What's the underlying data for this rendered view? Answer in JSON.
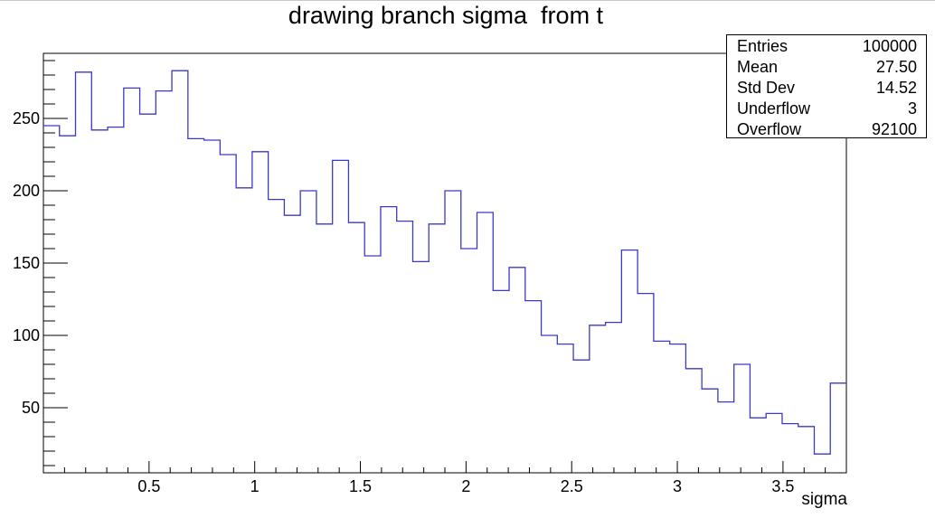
{
  "chart_data": {
    "type": "histogram",
    "title": "drawing branch sigma  from t",
    "xlabel": "sigma",
    "ylabel": "",
    "xlim": [
      0.0,
      3.8
    ],
    "ylim": [
      5,
      295
    ],
    "bin_edges_start": 0.0,
    "bin_width": 0.076,
    "values": [
      245,
      238,
      282,
      242,
      244,
      271,
      253,
      269,
      283,
      236,
      235,
      225,
      202,
      227,
      194,
      183,
      200,
      177,
      221,
      178,
      155,
      189,
      179,
      151,
      177,
      200,
      160,
      185,
      131,
      147,
      124,
      100,
      94,
      83,
      107,
      109,
      159,
      129,
      96,
      94,
      77,
      63,
      54,
      80,
      43,
      46,
      39,
      37,
      18,
      67
    ],
    "xticks": [
      0.5,
      1,
      1.5,
      2,
      2.5,
      3,
      3.5
    ],
    "xtick_labels": [
      "0.5",
      "1",
      "1.5",
      "2",
      "2.5",
      "3",
      "3.5"
    ],
    "yticks": [
      50,
      100,
      150,
      200,
      250
    ],
    "ytick_labels": [
      "50",
      "100",
      "150",
      "200",
      "250"
    ],
    "line_color": "#3a3ac8",
    "grid": false
  },
  "stats": [
    {
      "label": "Entries",
      "value": "100000"
    },
    {
      "label": "Mean",
      "value": "27.50"
    },
    {
      "label": "Std Dev",
      "value": "14.52"
    },
    {
      "label": "Underflow",
      "value": "3"
    },
    {
      "label": "Overflow",
      "value": "92100"
    }
  ]
}
